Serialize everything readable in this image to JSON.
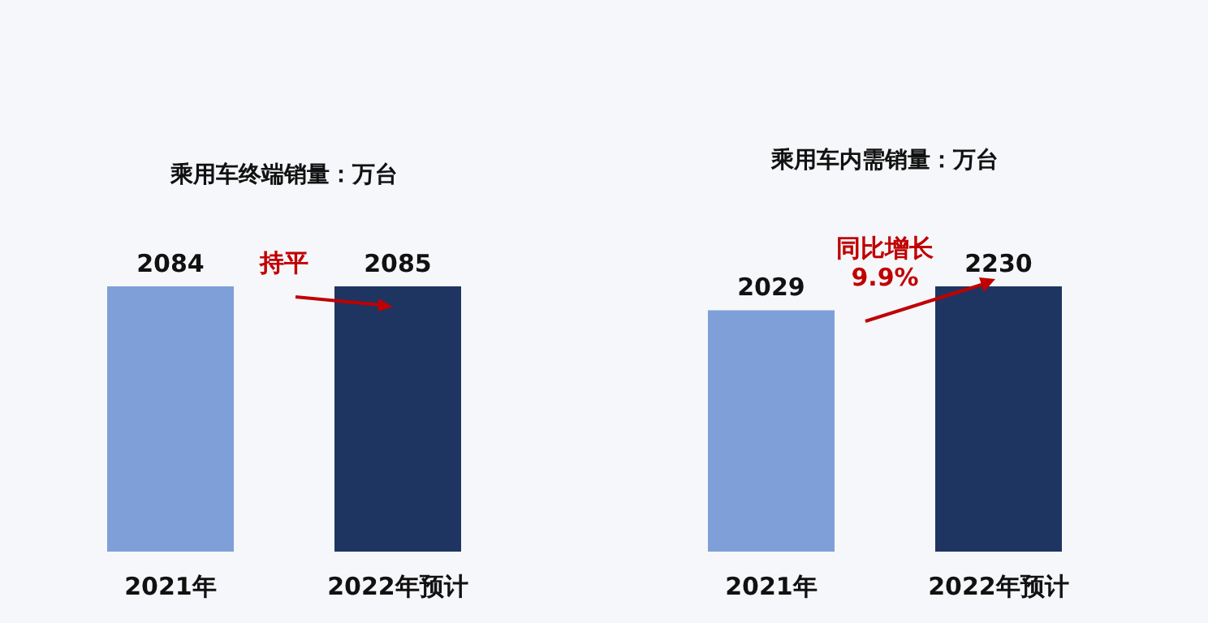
{
  "chart_data": [
    {
      "type": "bar",
      "title": "乘用车终端销量：万台",
      "categories": [
        "2021年",
        "2022年预计"
      ],
      "values": [
        2084,
        2085
      ],
      "colors": [
        "#7f9fd8",
        "#1f3561"
      ],
      "data_labels": true,
      "annotations": [
        "持平"
      ]
    },
    {
      "type": "bar",
      "title": "乘用车内需销量：万台",
      "categories": [
        "2021年",
        "2022年预计"
      ],
      "values": [
        2029,
        2230
      ],
      "colors": [
        "#7f9fd8",
        "#1f3561"
      ],
      "data_labels": true,
      "annotations": [
        "同比增长\n9.9%"
      ]
    }
  ]
}
